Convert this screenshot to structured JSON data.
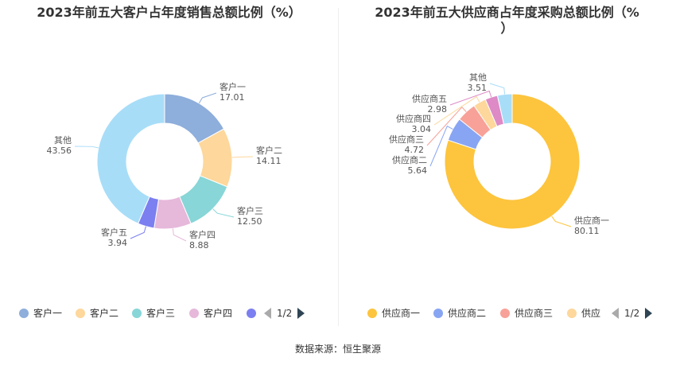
{
  "source": "数据来源：恒生聚源",
  "chart_data": [
    {
      "type": "pie",
      "title": "2023年前五大客户占年度销售总额比例（%）",
      "categories": [
        "客户一",
        "客户二",
        "客户三",
        "客户四",
        "客户五",
        "其他"
      ],
      "values": [
        17.01,
        14.11,
        12.5,
        8.88,
        3.94,
        43.56
      ],
      "value_labels": [
        "17.01",
        "14.11",
        "12.50",
        "8.88",
        "3.94",
        "43.56"
      ],
      "colors": [
        "#8eaedb",
        "#fdd79b",
        "#88d6d7",
        "#e6b8da",
        "#7b7ff0",
        "#a8ddf8"
      ],
      "legend": {
        "placement": "bottom",
        "visible_items": [
          "客户一",
          "客户二",
          "客户三",
          "客户四"
        ],
        "pager_text": "1/2"
      }
    },
    {
      "type": "pie",
      "title_line1": "2023年前五大供应商占年度采购总额比例（%",
      "title_line2": "）",
      "categories": [
        "供应商一",
        "供应商二",
        "供应商三",
        "供应商四",
        "供应商五",
        "其他"
      ],
      "values": [
        80.11,
        5.64,
        4.72,
        3.04,
        2.98,
        3.51
      ],
      "value_labels": [
        "80.11",
        "5.64",
        "4.72",
        "3.04",
        "2.98",
        "3.51"
      ],
      "colors": [
        "#fdc43d",
        "#88a5f3",
        "#f8a198",
        "#fdd79b",
        "#dd8ac6",
        "#a8ddf8"
      ],
      "legend": {
        "placement": "bottom",
        "visible_items": [
          "供应商一",
          "供应商二",
          "供应商三",
          "供应"
        ],
        "pager_text": "1/2"
      }
    }
  ]
}
